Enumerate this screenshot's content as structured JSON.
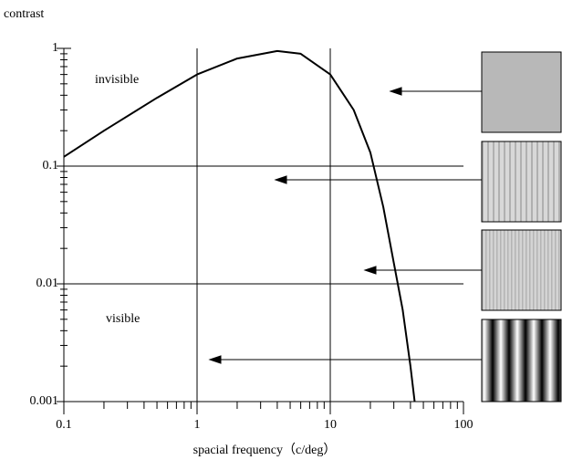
{
  "chart_data": {
    "type": "line",
    "y_label": "contrast",
    "x_label": "spacial frequency（c/deg）",
    "annotations": [
      "invisible",
      "visible"
    ],
    "log_x": true,
    "log_y": true,
    "grid": true,
    "xlim": [
      0.1,
      100
    ],
    "xticks": [
      0.1,
      1,
      10,
      100
    ],
    "ylim": [
      0.001,
      1
    ],
    "yticks": [
      0.001,
      0.01,
      0.1,
      1
    ],
    "series": [
      {
        "color": "#000000",
        "x": [
          0.1,
          0.2,
          0.5,
          1,
          2,
          4,
          6,
          10,
          15,
          20,
          25,
          30,
          35,
          40,
          43
        ],
        "values": [
          0.12,
          0.2,
          0.38,
          0.6,
          0.82,
          0.95,
          0.9,
          0.6,
          0.3,
          0.13,
          0.045,
          0.015,
          0.006,
          0.002,
          0.001
        ]
      }
    ]
  }
}
